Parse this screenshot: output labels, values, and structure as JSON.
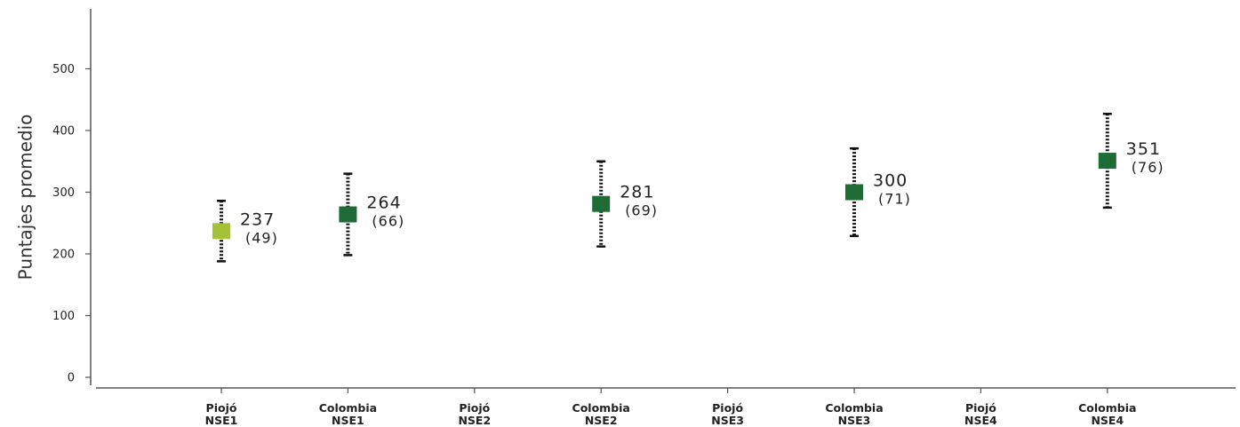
{
  "chart_data": {
    "type": "scatter",
    "title": "",
    "ylabel": "Puntajes promedio",
    "ylim": [
      0,
      500
    ],
    "yticks": [
      0,
      100,
      200,
      300,
      400,
      500
    ],
    "grid": false,
    "categories": [
      {
        "line1": "Piojó",
        "line2": "NSE1"
      },
      {
        "line1": "Colombia",
        "line2": "NSE1"
      },
      {
        "line1": "Piojó",
        "line2": "NSE2"
      },
      {
        "line1": "Colombia",
        "line2": "NSE2"
      },
      {
        "line1": "Piojó",
        "line2": "NSE3"
      },
      {
        "line1": "Colombia",
        "line2": "NSE3"
      },
      {
        "line1": "Piojó",
        "line2": "NSE4"
      },
      {
        "line1": "Colombia",
        "line2": "NSE4"
      }
    ],
    "points": [
      {
        "category_index": 0,
        "mean": 237,
        "low": 188,
        "high": 286,
        "value_label": "237",
        "sd_label": "(49)",
        "color": "#a4c13a"
      },
      {
        "category_index": 1,
        "mean": 264,
        "low": 198,
        "high": 330,
        "value_label": "264",
        "sd_label": "(66)",
        "color": "#1f6b35"
      },
      {
        "category_index": 3,
        "mean": 281,
        "low": 212,
        "high": 350,
        "value_label": "281",
        "sd_label": "(69)",
        "color": "#1f6b35"
      },
      {
        "category_index": 5,
        "mean": 300,
        "low": 229,
        "high": 371,
        "value_label": "300",
        "sd_label": "(71)",
        "color": "#1f6b35"
      },
      {
        "category_index": 7,
        "mean": 351,
        "low": 275,
        "high": 427,
        "value_label": "351",
        "sd_label": "(76)",
        "color": "#1f6b35"
      }
    ]
  }
}
